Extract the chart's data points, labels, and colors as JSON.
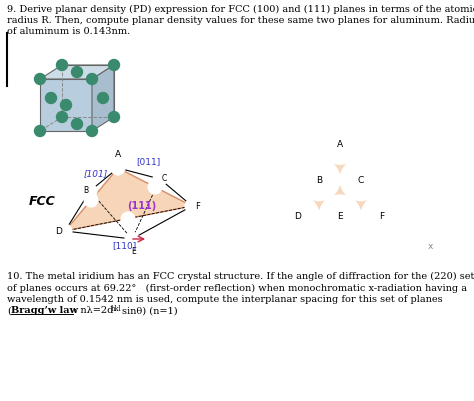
{
  "bg_color": "#ffffff",
  "cube_face_color": "#b8cede",
  "cube_top_color": "#ccdde8",
  "cube_right_color": "#a8bece",
  "atom_color": "#3a8a6e",
  "atom_edge": "#1a5a3a",
  "fcc_fill": "#f5c8a0",
  "fcc_edge": "#c87040",
  "triangle_fill": "#f5c8a0",
  "triangle_edge": "#c84060",
  "blue_label": "#3333cc",
  "purple_label": "#9933cc",
  "red_arrow": "#cc2244",
  "text_line1": "9. Derive planar density (PD) expression for FCC (100) and (111) planes in terms of the atomic",
  "text_line2": "radius R. Then, compute planar density values for these same two planes for aluminum. Radius",
  "text_line3": "of aluminum is 0.143nm.",
  "q10_line1": "10. The metal iridium has an FCC crystal structure. If the angle of diffraction for the (220) set",
  "q10_line2": "of planes occurs at 69.22°   (first-order reflection) when monochromatic x-radiation having a",
  "q10_line3": "wavelength of 0.1542 nm is used, compute the interplanar spacing for this set of planes",
  "q10_line4_pre": "(",
  "q10_bold": "Bragg’w law",
  "q10_line4_post": ": nλ=2d",
  "q10_sub": "hkl",
  "q10_line4_end": "sinθ) (n=1)"
}
